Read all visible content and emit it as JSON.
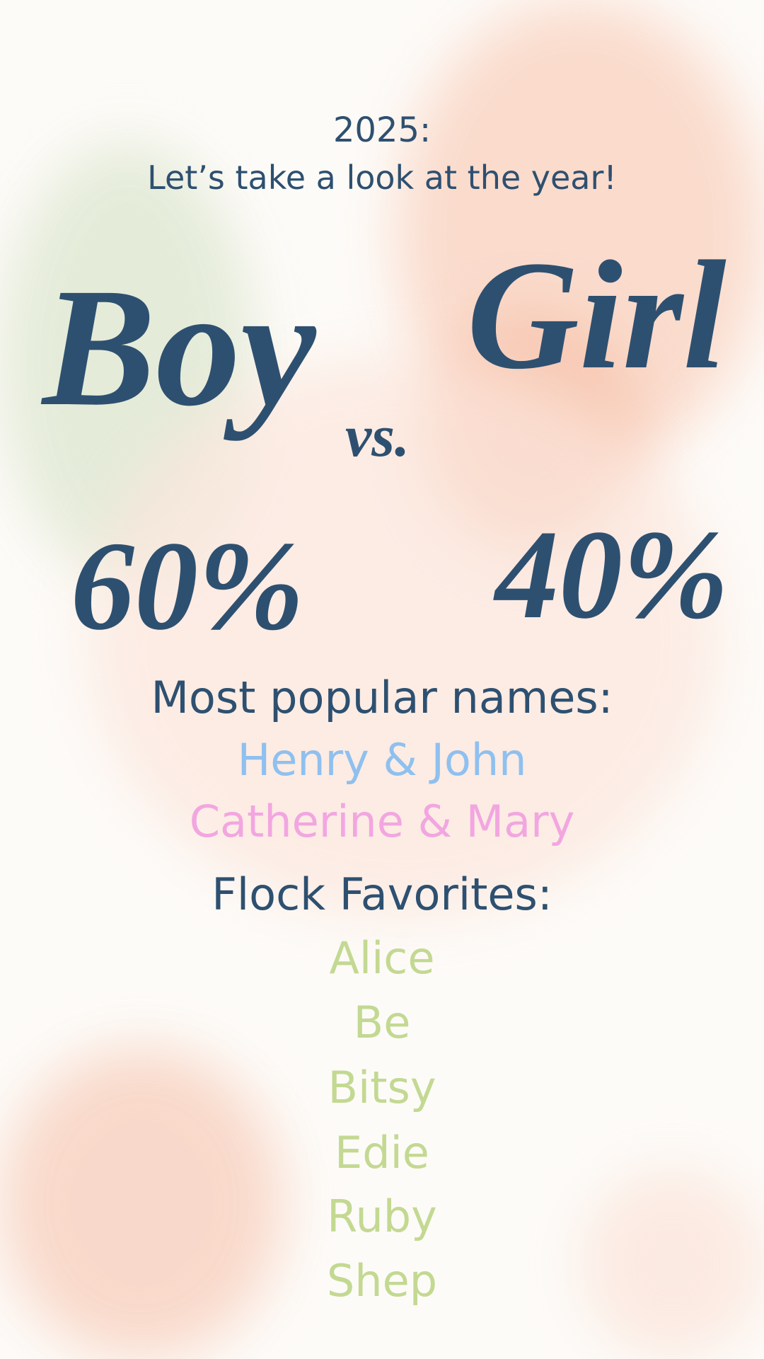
{
  "header": {
    "year": "2025:",
    "subtitle": "Let’s take a look at the year!"
  },
  "comparison": {
    "boy_label": "Boy",
    "vs_label": "vs.",
    "girl_label": "Girl",
    "boy_percent": "60%",
    "girl_percent": "40%"
  },
  "popular": {
    "heading": "Most popular names:",
    "boy_names": "Henry & John",
    "girl_names": "Catherine & Mary"
  },
  "favorites": {
    "heading": "Flock Favorites:",
    "names": [
      "Alice",
      "Be",
      "Bitsy",
      "Edie",
      "Ruby",
      "Shep"
    ]
  },
  "colors": {
    "text_dark": "#2e5070",
    "boy_blue": "#8fc0ef",
    "girl_pink": "#f2a6e0",
    "favorite_green": "#c3d992",
    "wash_peach": "#f7c9b4",
    "wash_green": "#dfe8d2"
  }
}
